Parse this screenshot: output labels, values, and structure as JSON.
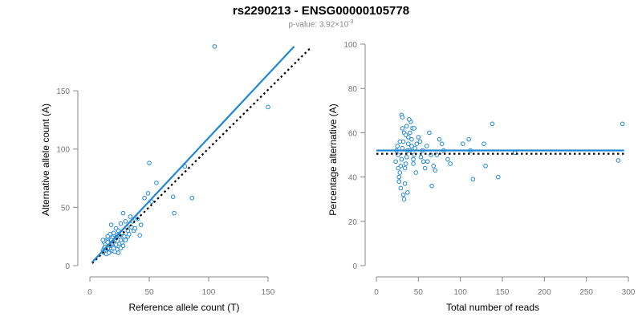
{
  "title": "rs2290213 - ENSG00000105778",
  "subtitle": {
    "prefix": "p-value: 3.92×10",
    "exponent": "-3"
  },
  "colors": {
    "points": "#1f87d6",
    "fit_line": "#1f87d6",
    "reference_line": "#000000",
    "axis": "#888888"
  },
  "chart_data": [
    {
      "type": "scatter",
      "xlabel": "Reference allele count (T)",
      "ylabel": "Alternative allele count (A)",
      "xlim": [
        0,
        175
      ],
      "ylim": [
        0,
        190
      ],
      "xticks": [
        0,
        50,
        100,
        150
      ],
      "yticks": [
        0,
        50,
        100,
        150
      ],
      "grid": false,
      "fit_line": [
        [
          2,
          3
        ],
        [
          172,
          188
        ]
      ],
      "reference_line": [
        [
          2,
          2
        ],
        [
          185,
          186
        ]
      ],
      "points": [
        [
          105,
          188
        ],
        [
          150,
          136
        ],
        [
          80,
          85
        ],
        [
          50,
          88
        ],
        [
          56,
          71
        ],
        [
          49,
          62
        ],
        [
          46,
          58
        ],
        [
          70,
          59
        ],
        [
          86,
          58
        ],
        [
          71,
          45
        ],
        [
          52,
          55
        ],
        [
          40,
          40
        ],
        [
          43,
          35
        ],
        [
          37,
          30
        ],
        [
          42,
          26
        ],
        [
          28,
          45
        ],
        [
          34,
          42
        ],
        [
          30,
          38
        ],
        [
          26,
          36
        ],
        [
          35,
          33
        ],
        [
          32,
          30
        ],
        [
          27,
          28
        ],
        [
          22,
          32
        ],
        [
          24,
          30
        ],
        [
          18,
          35
        ],
        [
          20,
          28
        ],
        [
          25,
          25
        ],
        [
          29,
          25
        ],
        [
          23,
          26
        ],
        [
          17,
          27
        ],
        [
          15,
          25
        ],
        [
          19,
          24
        ],
        [
          21,
          22
        ],
        [
          16,
          22
        ],
        [
          14,
          22
        ],
        [
          13,
          21
        ],
        [
          12,
          20
        ],
        [
          11,
          22
        ],
        [
          13,
          18
        ],
        [
          15,
          16
        ],
        [
          12,
          15
        ],
        [
          14,
          14
        ],
        [
          16,
          15
        ],
        [
          18,
          14
        ],
        [
          11,
          13
        ],
        [
          13,
          12
        ],
        [
          17,
          12
        ],
        [
          19,
          13
        ],
        [
          20,
          15
        ],
        [
          22,
          18
        ],
        [
          25,
          19
        ],
        [
          23,
          14
        ],
        [
          21,
          12
        ],
        [
          24,
          11
        ],
        [
          26,
          15
        ],
        [
          27,
          20
        ],
        [
          30,
          22
        ],
        [
          32,
          25
        ],
        [
          28,
          17
        ],
        [
          19,
          19
        ],
        [
          17,
          17
        ],
        [
          15,
          20
        ],
        [
          13,
          16
        ],
        [
          12,
          11
        ],
        [
          14,
          10
        ],
        [
          16,
          11
        ],
        [
          18,
          22
        ],
        [
          20,
          20
        ],
        [
          31,
          33
        ],
        [
          36,
          38
        ],
        [
          33,
          27
        ],
        [
          38,
          32
        ],
        [
          22,
          24
        ],
        [
          26,
          22
        ]
      ]
    },
    {
      "type": "scatter",
      "xlabel": "Total number of reads",
      "ylabel": "Percentage alternative (A)",
      "xlim": [
        0,
        300
      ],
      "ylim": [
        0,
        100
      ],
      "xticks": [
        0,
        50,
        100,
        150,
        200,
        250,
        300
      ],
      "yticks": [
        0,
        20,
        40,
        60,
        80,
        100
      ],
      "grid": false,
      "fit_line": [
        [
          0,
          52
        ],
        [
          295,
          52
        ]
      ],
      "reference_line": [
        [
          0,
          50.5
        ],
        [
          295,
          50.5
        ]
      ],
      "points": [
        [
          293,
          64
        ],
        [
          288,
          47.5
        ],
        [
          165,
          51
        ],
        [
          145,
          40
        ],
        [
          138,
          64
        ],
        [
          128,
          55
        ],
        [
          130,
          45
        ],
        [
          112,
          52
        ],
        [
          110,
          57
        ],
        [
          103,
          55
        ],
        [
          115,
          39
        ],
        [
          88,
          46
        ],
        [
          85,
          48
        ],
        [
          80,
          52
        ],
        [
          78,
          55
        ],
        [
          75,
          57
        ],
        [
          70,
          43
        ],
        [
          68,
          45
        ],
        [
          66,
          36
        ],
        [
          65,
          50
        ],
        [
          63,
          60
        ],
        [
          60,
          54
        ],
        [
          58,
          44
        ],
        [
          56,
          47
        ],
        [
          55,
          52
        ],
        [
          52,
          56
        ],
        [
          50,
          58
        ],
        [
          48,
          55
        ],
        [
          46,
          53
        ],
        [
          45,
          50
        ],
        [
          44,
          48
        ],
        [
          43,
          62
        ],
        [
          42,
          57
        ],
        [
          41,
          65
        ],
        [
          40,
          60
        ],
        [
          39,
          66
        ],
        [
          38,
          55
        ],
        [
          37,
          52
        ],
        [
          36,
          49
        ],
        [
          35,
          46
        ],
        [
          34,
          44
        ],
        [
          33,
          60
        ],
        [
          32,
          56
        ],
        [
          31,
          53
        ],
        [
          30,
          48
        ],
        [
          29,
          45
        ],
        [
          28,
          42
        ],
        [
          27,
          40
        ],
        [
          26,
          50
        ],
        [
          25,
          54
        ],
        [
          24,
          52
        ],
        [
          23,
          47
        ],
        [
          30,
          68
        ],
        [
          31,
          67
        ],
        [
          36,
          63
        ],
        [
          38,
          58
        ],
        [
          40,
          52
        ],
        [
          42,
          54
        ],
        [
          44,
          46
        ],
        [
          47,
          42
        ],
        [
          33,
          30
        ],
        [
          29,
          35
        ],
        [
          34,
          37
        ],
        [
          37,
          33
        ],
        [
          32,
          32
        ],
        [
          27,
          38
        ],
        [
          26,
          44
        ],
        [
          28,
          56
        ],
        [
          31,
          62
        ],
        [
          35,
          59
        ],
        [
          45,
          62
        ],
        [
          53,
          49
        ],
        [
          61,
          47
        ],
        [
          72,
          50
        ]
      ]
    }
  ]
}
